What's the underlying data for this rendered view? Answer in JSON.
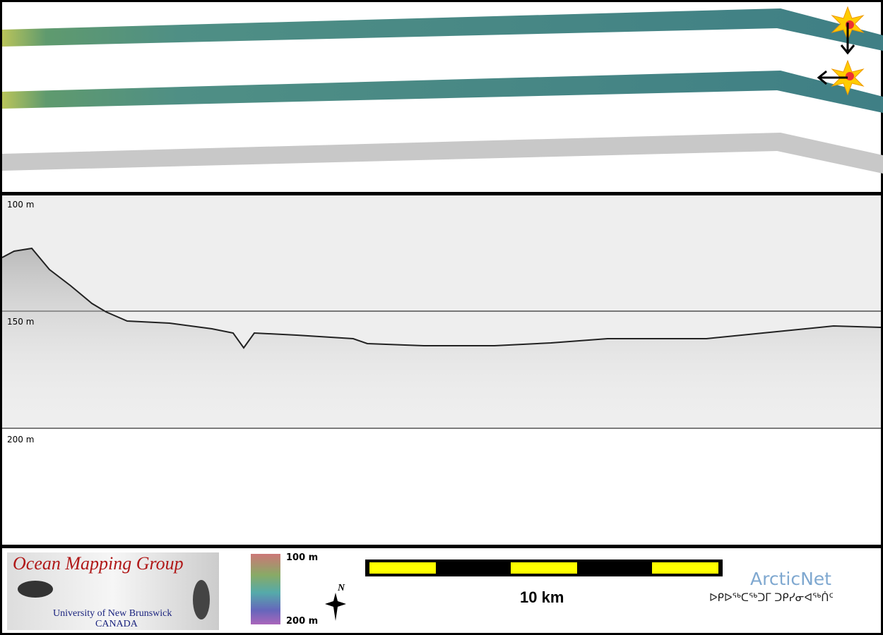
{
  "profile": {
    "depth_labels": [
      "100 m",
      "150 m",
      "200 m"
    ]
  },
  "logo": {
    "title": "Ocean Mapping Group",
    "university": "University of New Brunswick",
    "country": "CANADA"
  },
  "color_scale": {
    "top": "100 m",
    "bottom": "200 m"
  },
  "north": "N",
  "scale_bar": {
    "label": "10 km"
  },
  "partner": {
    "name": "ArcticNet",
    "syllabics": "ᐅᑭᐅᖅᑕᖅᑐᒥ ᑐᑭᓯᓂᐊᖅᑏᑦ"
  }
}
